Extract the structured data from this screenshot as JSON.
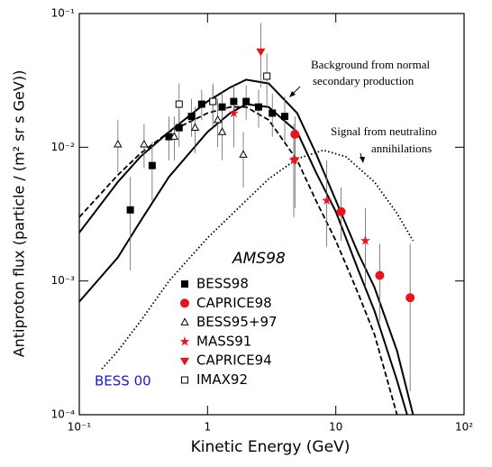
{
  "chart_data": {
    "type": "scatter",
    "xscale": "log",
    "yscale": "log",
    "xlabel": "Kinetic Energy (GeV)",
    "ylabel": "Antiproton flux (particle / (m² sr s GeV))",
    "xlim": [
      0.1,
      100
    ],
    "ylim": [
      0.0001,
      0.1
    ],
    "xticks": [
      {
        "value": 0.1,
        "label": "10⁻¹"
      },
      1,
      10,
      {
        "value": 100,
        "label": "10²"
      }
    ],
    "yticks": [
      {
        "value": 0.0001,
        "label": "10⁻⁴"
      },
      {
        "value": 0.001,
        "label": "10⁻³"
      },
      {
        "value": 0.01,
        "label": "10⁻²"
      },
      {
        "value": 0.1,
        "label": "10⁻¹"
      }
    ],
    "legend_title": "AMS98",
    "annotations": [
      "Background from normal",
      "secondary production",
      "Signal from neutralino",
      "annihilations",
      "BESS 00"
    ],
    "series": [
      {
        "name": "BESS98",
        "marker": "square",
        "filled": true,
        "color": "#000000",
        "x": [
          0.25,
          0.37,
          0.5,
          0.6,
          0.75,
          0.9,
          1.1,
          1.3,
          1.6,
          2.0,
          2.5,
          3.2,
          4.0
        ],
        "values": [
          0.0034,
          0.0073,
          0.012,
          0.014,
          0.017,
          0.021,
          0.022,
          0.02,
          0.022,
          0.022,
          0.02,
          0.018,
          0.017
        ],
        "ylow": [
          0.0012,
          0.004,
          0.008,
          0.01,
          0.012,
          0.016,
          0.016,
          0.015,
          0.016,
          0.016,
          0.014,
          0.012,
          0.011
        ],
        "yhigh": [
          0.006,
          0.011,
          0.017,
          0.019,
          0.023,
          0.027,
          0.029,
          0.026,
          0.029,
          0.029,
          0.027,
          0.025,
          0.024
        ]
      },
      {
        "name": "CAPRICE98",
        "marker": "circle",
        "filled": true,
        "color": "#e8141c",
        "x": [
          4.8,
          11,
          22,
          38
        ],
        "values": [
          0.0125,
          0.0033,
          0.0011,
          0.00075
        ],
        "ylow": [
          0.0085,
          0.002,
          0.0005,
          0.00015
        ],
        "yhigh": [
          0.017,
          0.005,
          0.0019,
          0.0019
        ]
      },
      {
        "name": "BESS95+97",
        "marker": "triangle",
        "filled": false,
        "color": "#000000",
        "x": [
          0.2,
          0.32,
          0.55,
          0.8,
          1.2,
          1.3,
          1.9
        ],
        "values": [
          0.0105,
          0.0105,
          0.012,
          0.014,
          0.016,
          0.013,
          0.0088
        ],
        "ylow": [
          0.0065,
          0.007,
          0.008,
          0.009,
          0.01,
          0.008,
          0.005
        ],
        "yhigh": [
          0.016,
          0.015,
          0.017,
          0.02,
          0.023,
          0.019,
          0.013
        ]
      },
      {
        "name": "MASS91",
        "marker": "star",
        "filled": true,
        "color": "#e8141c",
        "x": [
          1.6,
          4.7,
          8.5,
          17
        ],
        "values": [
          0.018,
          0.008,
          0.004,
          0.002
        ],
        "ylow": [
          0.01,
          0.003,
          0.0018,
          0.0009
        ],
        "yhigh": [
          0.028,
          0.015,
          0.008,
          0.0035
        ]
      },
      {
        "name": "CAPRICE94",
        "marker": "triangle-down",
        "filled": true,
        "color": "#e8141c",
        "x": [
          2.6,
          4.8
        ],
        "values": [
          0.052,
          0.008
        ],
        "ylow": [
          0.028,
          0.0035
        ],
        "yhigh": [
          0.085,
          0.014
        ]
      },
      {
        "name": "IMAX92",
        "marker": "square",
        "filled": false,
        "color": "#000000",
        "x": [
          0.6,
          1.1,
          2.9
        ],
        "values": [
          0.021,
          0.022,
          0.034
        ],
        "ylow": [
          0.013,
          0.014,
          0.02
        ],
        "yhigh": [
          0.03,
          0.03,
          0.05
        ]
      }
    ],
    "curves": [
      {
        "style": "solid",
        "x": [
          0.1,
          0.2,
          0.3,
          0.5,
          1,
          1.5,
          2,
          3,
          5,
          7,
          10,
          15,
          20,
          30,
          40
        ],
        "values": [
          0.0023,
          0.0055,
          0.0085,
          0.013,
          0.022,
          0.028,
          0.032,
          0.03,
          0.018,
          0.009,
          0.004,
          0.0016,
          0.0009,
          0.0003,
          0.0001
        ]
      },
      {
        "style": "solid",
        "x": [
          0.1,
          0.2,
          0.3,
          0.5,
          1,
          1.5,
          2,
          3,
          5,
          7,
          10,
          15,
          20,
          30,
          36
        ],
        "values": [
          0.0007,
          0.0015,
          0.0028,
          0.006,
          0.013,
          0.018,
          0.021,
          0.02,
          0.013,
          0.0065,
          0.0033,
          0.0012,
          0.0006,
          0.00018,
          0.0001
        ]
      },
      {
        "style": "dashed",
        "x": [
          0.1,
          0.2,
          0.3,
          0.5,
          1,
          1.5,
          2,
          3,
          5,
          7,
          10,
          15,
          20,
          30
        ],
        "values": [
          0.003,
          0.0062,
          0.009,
          0.013,
          0.018,
          0.02,
          0.02,
          0.016,
          0.008,
          0.004,
          0.002,
          0.0008,
          0.0004,
          0.0001
        ]
      },
      {
        "style": "dotted",
        "x": [
          0.15,
          0.2,
          0.3,
          0.5,
          1,
          2,
          3,
          5,
          8,
          12,
          20,
          30,
          40
        ],
        "values": [
          0.00022,
          0.0003,
          0.0005,
          0.001,
          0.0021,
          0.004,
          0.0058,
          0.0082,
          0.0095,
          0.0085,
          0.0055,
          0.0032,
          0.002
        ]
      }
    ]
  }
}
